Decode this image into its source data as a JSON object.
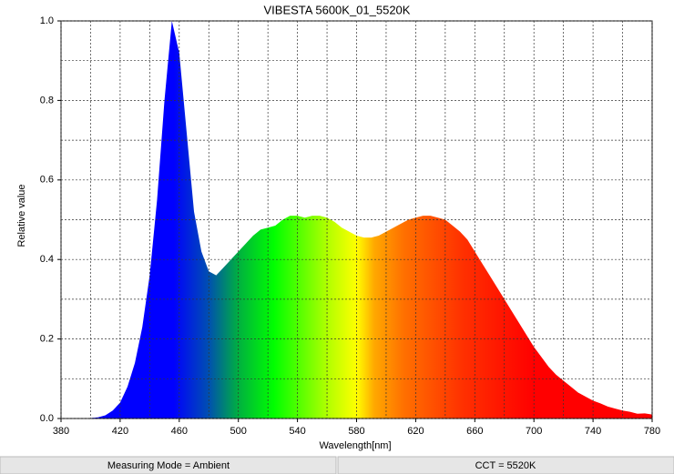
{
  "chart_data": {
    "type": "area",
    "title": "VIBESTA 5600K_01_5520K",
    "x_label": "Wavelength[nm]",
    "y_label": "Relative value",
    "x": [
      380,
      385,
      390,
      395,
      400,
      405,
      410,
      415,
      420,
      425,
      430,
      435,
      440,
      445,
      450,
      455,
      460,
      465,
      470,
      475,
      480,
      485,
      490,
      495,
      500,
      505,
      510,
      515,
      520,
      525,
      530,
      535,
      540,
      545,
      550,
      555,
      560,
      565,
      570,
      575,
      580,
      585,
      590,
      595,
      600,
      605,
      610,
      615,
      620,
      625,
      630,
      635,
      640,
      645,
      650,
      655,
      660,
      665,
      670,
      675,
      680,
      685,
      690,
      695,
      700,
      705,
      710,
      715,
      720,
      725,
      730,
      735,
      740,
      745,
      750,
      755,
      760,
      765,
      770,
      775,
      780
    ],
    "values": [
      0,
      0,
      0,
      0,
      0.001,
      0.003,
      0.008,
      0.02,
      0.04,
      0.08,
      0.14,
      0.23,
      0.36,
      0.55,
      0.8,
      1.0,
      0.92,
      0.72,
      0.52,
      0.42,
      0.37,
      0.36,
      0.38,
      0.4,
      0.42,
      0.44,
      0.46,
      0.475,
      0.48,
      0.485,
      0.5,
      0.51,
      0.51,
      0.505,
      0.51,
      0.51,
      0.505,
      0.495,
      0.48,
      0.47,
      0.46,
      0.455,
      0.455,
      0.46,
      0.47,
      0.48,
      0.49,
      0.5,
      0.505,
      0.51,
      0.51,
      0.505,
      0.5,
      0.485,
      0.47,
      0.45,
      0.42,
      0.39,
      0.36,
      0.33,
      0.3,
      0.27,
      0.24,
      0.21,
      0.18,
      0.155,
      0.13,
      0.11,
      0.095,
      0.08,
      0.065,
      0.055,
      0.045,
      0.038,
      0.03,
      0.025,
      0.02,
      0.017,
      0.012,
      0.013,
      0.01
    ],
    "xlim": [
      380,
      780
    ],
    "xticks": [
      380,
      420,
      460,
      500,
      540,
      580,
      620,
      660,
      700,
      740,
      780
    ],
    "xminor": [
      400,
      440,
      480,
      520,
      560,
      600,
      640,
      680,
      720,
      760
    ],
    "ylim": [
      0,
      1
    ],
    "yticks": [
      {
        "value": 0,
        "label": "0.0"
      },
      0.2,
      0.4,
      0.6,
      0.8,
      {
        "value": 1,
        "label": "1.0"
      }
    ],
    "yminor": [
      0.1,
      0.3,
      0.5,
      0.7,
      0.9
    ],
    "grid": true
  },
  "status_bar": {
    "left": "Measuring Mode = Ambient",
    "right": "CCT = 5520K"
  }
}
